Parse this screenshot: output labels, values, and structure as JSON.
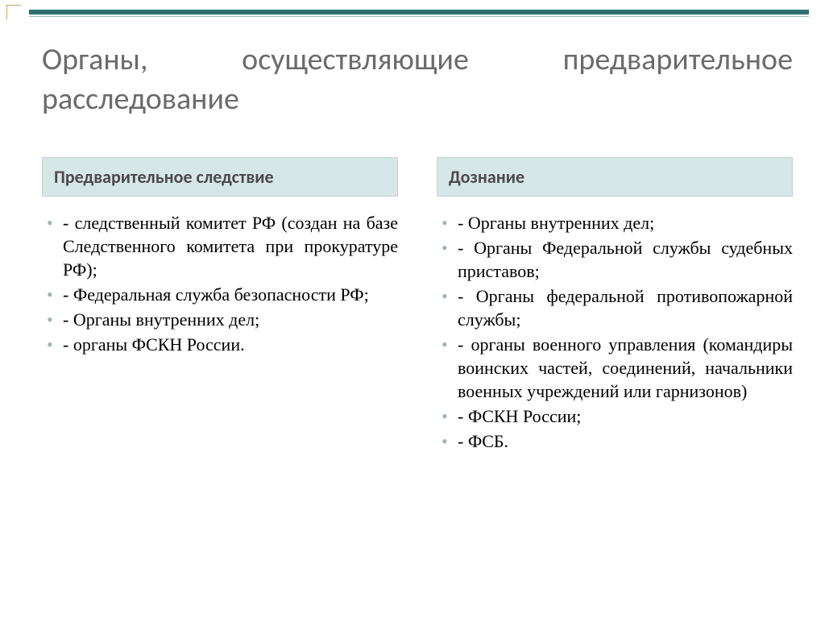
{
  "title": "Органы, осуществляющие предварительное расследование",
  "accent_color": "#2f6f6f",
  "bullet_color": "#9fb8a8",
  "header_bg": "#d7e6e6",
  "left": {
    "header": "Предварительное следствие",
    "items": [
      "- следственный комитет РФ (создан на базе Следственного комитета при прокуратуре РФ);",
      "- Федеральная служба безопасности РФ;",
      "- Органы внутренних дел;",
      "- органы ФСКН России."
    ]
  },
  "right": {
    "header": "Дознание",
    "items": [
      "- Органы внутренних дел;",
      "- Органы Федеральной службы судебных приставов;",
      "- Органы федеральной противопожарной службы;",
      "- органы военного управления (командиры воинских частей, соединений, начальники военных учреждений или гарнизонов)",
      "- ФСКН России;",
      "- ФСБ."
    ]
  }
}
